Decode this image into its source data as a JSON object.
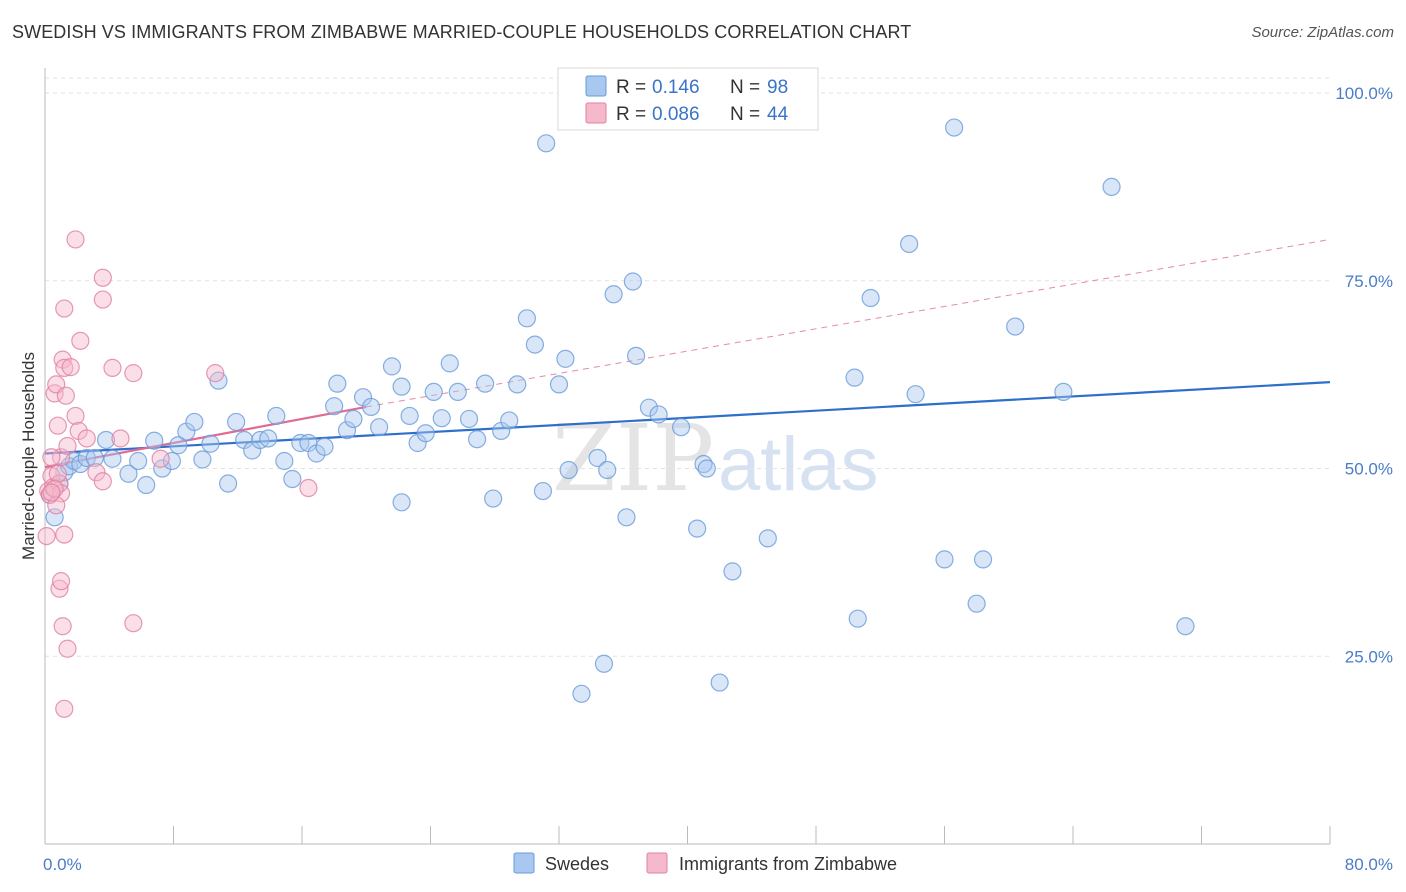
{
  "header": {
    "title": "SWEDISH VS IMMIGRANTS FROM ZIMBABWE MARRIED-COUPLE HOUSEHOLDS CORRELATION CHART",
    "source": "Source: ZipAtlas.com"
  },
  "watermark": {
    "zip": "ZIP",
    "atlas": "atlas"
  },
  "legend_top": {
    "rows": [
      {
        "r_label": "R =",
        "r_value": "0.146",
        "n_label": "N =",
        "n_value": "98",
        "color": "#a8c8f0",
        "stroke": "#6a9bd8"
      },
      {
        "r_label": "R =",
        "r_value": "0.086",
        "n_label": "N =",
        "n_value": "44",
        "color": "#f6b8cb",
        "stroke": "#e07fa0"
      }
    ]
  },
  "legend_bottom": {
    "items": [
      {
        "label": "Swedes",
        "color": "#a8c8f0",
        "stroke": "#6a9bd8"
      },
      {
        "label": "Immigrants from Zimbabwe",
        "color": "#f6b8cb",
        "stroke": "#e07fa0"
      }
    ]
  },
  "chart_data": {
    "type": "scatter",
    "title": "SWEDISH VS IMMIGRANTS FROM ZIMBABWE MARRIED-COUPLE HOUSEHOLDS CORRELATION CHART",
    "xlabel": "",
    "ylabel": "Married-couple Households",
    "xlim": [
      0,
      80
    ],
    "ylim": [
      0,
      102
    ],
    "x_tick_labels": [
      "0.0%",
      "80.0%"
    ],
    "y_ticks": [
      25,
      50,
      75,
      100
    ],
    "y_tick_labels": [
      "25.0%",
      "50.0%",
      "75.0%",
      "100.0%"
    ],
    "grid": true,
    "legend_position": "top-center",
    "series": [
      {
        "name": "Swedes",
        "color": "#6a9bd8",
        "fill": "#a8c8f0",
        "trend": {
          "x": [
            0,
            80
          ],
          "y": [
            52,
            61.5
          ],
          "style": "solid"
        },
        "points": [
          [
            0.3,
            46.5
          ],
          [
            0.6,
            43.5
          ],
          [
            0.9,
            48
          ],
          [
            1.2,
            49.5
          ],
          [
            1.5,
            50.3
          ],
          [
            1.8,
            51
          ],
          [
            2.2,
            50.6
          ],
          [
            2.6,
            51.4
          ],
          [
            3.1,
            51.4
          ],
          [
            3.8,
            53.8
          ],
          [
            4.2,
            51.3
          ],
          [
            5.2,
            49.3
          ],
          [
            5.8,
            51
          ],
          [
            6.3,
            47.8
          ],
          [
            6.8,
            53.7
          ],
          [
            7.3,
            50
          ],
          [
            7.9,
            51
          ],
          [
            8.3,
            53.1
          ],
          [
            8.8,
            54.9
          ],
          [
            9.3,
            56.2
          ],
          [
            9.8,
            51.2
          ],
          [
            10.3,
            53.3
          ],
          [
            10.8,
            61.7
          ],
          [
            11.4,
            48
          ],
          [
            11.9,
            56.2
          ],
          [
            12.4,
            53.8
          ],
          [
            12.9,
            52.4
          ],
          [
            13.4,
            53.8
          ],
          [
            13.9,
            54
          ],
          [
            14.4,
            57
          ],
          [
            14.9,
            51
          ],
          [
            15.4,
            48.6
          ],
          [
            15.9,
            53.4
          ],
          [
            16.4,
            53.4
          ],
          [
            16.9,
            52
          ],
          [
            17.4,
            52.9
          ],
          [
            18.0,
            58.3
          ],
          [
            18.2,
            61.3
          ],
          [
            18.8,
            55.1
          ],
          [
            19.2,
            56.6
          ],
          [
            19.8,
            59.5
          ],
          [
            20.3,
            58.2
          ],
          [
            20.8,
            55.5
          ],
          [
            21.6,
            63.6
          ],
          [
            22.2,
            60.9
          ],
          [
            22.2,
            45.5
          ],
          [
            22.7,
            57
          ],
          [
            23.2,
            53.4
          ],
          [
            23.7,
            54.7
          ],
          [
            24.2,
            60.2
          ],
          [
            24.7,
            56.7
          ],
          [
            25.2,
            64
          ],
          [
            25.7,
            60.2
          ],
          [
            26.4,
            56.6
          ],
          [
            26.9,
            53.9
          ],
          [
            27.4,
            61.3
          ],
          [
            27.9,
            46
          ],
          [
            28.4,
            55
          ],
          [
            28.9,
            56.4
          ],
          [
            29.4,
            61.2
          ],
          [
            30.0,
            70
          ],
          [
            30.5,
            66.5
          ],
          [
            31.0,
            47
          ],
          [
            31.2,
            93.3
          ],
          [
            32.0,
            61.2
          ],
          [
            32.4,
            64.6
          ],
          [
            32.6,
            49.8
          ],
          [
            33.4,
            20
          ],
          [
            34.4,
            51.4
          ],
          [
            34.8,
            24
          ],
          [
            35.0,
            49.8
          ],
          [
            35.4,
            73.2
          ],
          [
            36.2,
            43.5
          ],
          [
            36.6,
            74.9
          ],
          [
            36.8,
            65
          ],
          [
            37.6,
            58.1
          ],
          [
            38.2,
            57.2
          ],
          [
            39.6,
            55.5
          ],
          [
            40.6,
            42
          ],
          [
            41.0,
            50.6
          ],
          [
            41.2,
            50
          ],
          [
            42.0,
            21.5
          ],
          [
            42.8,
            36.3
          ],
          [
            43.6,
            99.3
          ],
          [
            45.0,
            40.7
          ],
          [
            46.2,
            99.3
          ],
          [
            50.4,
            62.1
          ],
          [
            50.6,
            30
          ],
          [
            51.4,
            72.7
          ],
          [
            53.8,
            79.9
          ],
          [
            54.2,
            59.9
          ],
          [
            56.0,
            37.9
          ],
          [
            56.6,
            95.4
          ],
          [
            58.0,
            32
          ],
          [
            58.4,
            37.9
          ],
          [
            60.4,
            68.9
          ],
          [
            63.4,
            60.2
          ],
          [
            66.4,
            87.5
          ],
          [
            71.0,
            29
          ]
        ]
      },
      {
        "name": "Immigrants from Zimbabwe",
        "color": "#e07fa0",
        "fill": "#f6b8cb",
        "trend_solid": {
          "x": [
            0,
            20
          ],
          "y": [
            50.2,
            58.2
          ]
        },
        "trend_dashed": {
          "x": [
            20,
            80
          ],
          "y": [
            58.2,
            80.5
          ]
        },
        "points": [
          [
            0.1,
            41
          ],
          [
            0.2,
            47
          ],
          [
            0.3,
            46.5
          ],
          [
            0.4,
            49
          ],
          [
            0.5,
            47.5
          ],
          [
            0.6,
            60
          ],
          [
            0.7,
            61.2
          ],
          [
            0.8,
            55.7
          ],
          [
            0.9,
            48
          ],
          [
            1.0,
            51.5
          ],
          [
            1.1,
            64.5
          ],
          [
            1.2,
            63.4
          ],
          [
            1.3,
            59.7
          ],
          [
            1.4,
            53
          ],
          [
            1.6,
            63.5
          ],
          [
            1.9,
            57
          ],
          [
            2.1,
            55
          ],
          [
            2.6,
            54
          ],
          [
            3.2,
            49.5
          ],
          [
            3.6,
            48.3
          ],
          [
            3.6,
            75.4
          ],
          [
            4.2,
            63.4
          ],
          [
            4.7,
            54
          ],
          [
            5.5,
            62.7
          ],
          [
            7.2,
            51.3
          ],
          [
            10.6,
            62.7
          ],
          [
            16.4,
            47.4
          ],
          [
            1.2,
            71.3
          ],
          [
            2.2,
            67
          ],
          [
            1.9,
            80.5
          ],
          [
            3.6,
            72.5
          ],
          [
            0.9,
            34
          ],
          [
            1.0,
            35
          ],
          [
            1.1,
            29
          ],
          [
            1.4,
            26
          ],
          [
            1.2,
            18
          ],
          [
            5.5,
            29.4
          ],
          [
            0.4,
            51.5
          ],
          [
            0.8,
            49.3
          ],
          [
            1.0,
            46.7
          ],
          [
            0.6,
            47.3
          ],
          [
            0.7,
            45.1
          ],
          [
            1.2,
            41.2
          ],
          [
            0.4,
            46.8
          ]
        ]
      }
    ]
  }
}
